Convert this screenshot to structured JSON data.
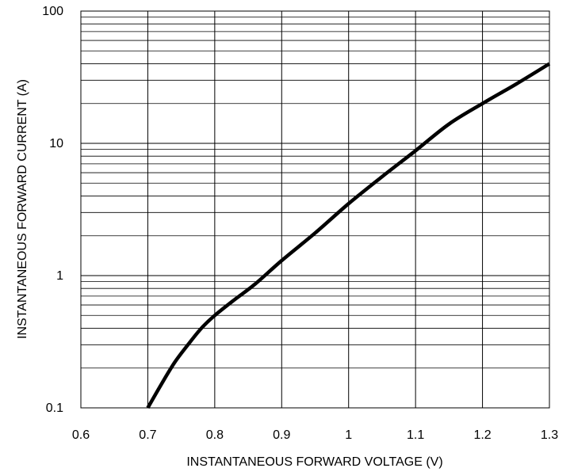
{
  "chart_data": {
    "type": "line",
    "title": "",
    "xlabel": "INSTANTANEOUS FORWARD VOLTAGE (V)",
    "ylabel": "INSTANTANEOUS FORWARD CURRENT (A)",
    "xlim": [
      0.6,
      1.3
    ],
    "ylim": [
      0.1,
      100
    ],
    "yscale": "log",
    "grid": true,
    "x_ticks": [
      "0.6",
      "0.7",
      "0.8",
      "0.9",
      "1",
      "1.1",
      "1.2",
      "1.3"
    ],
    "y_ticks": [
      "0.1",
      "1",
      "10",
      "100"
    ],
    "series": [
      {
        "x": [
          0.7,
          0.72,
          0.74,
          0.76,
          0.78,
          0.8,
          0.83,
          0.86,
          0.9,
          0.95,
          1.0,
          1.05,
          1.1,
          1.15,
          1.2,
          1.25,
          1.3
        ],
        "y": [
          0.1,
          0.15,
          0.22,
          0.3,
          0.4,
          0.5,
          0.66,
          0.86,
          1.3,
          2.1,
          3.5,
          5.6,
          8.8,
          14,
          20,
          28,
          40
        ]
      }
    ],
    "colors": {
      "line": "#000000",
      "grid": "#000000",
      "background": "#ffffff"
    }
  }
}
